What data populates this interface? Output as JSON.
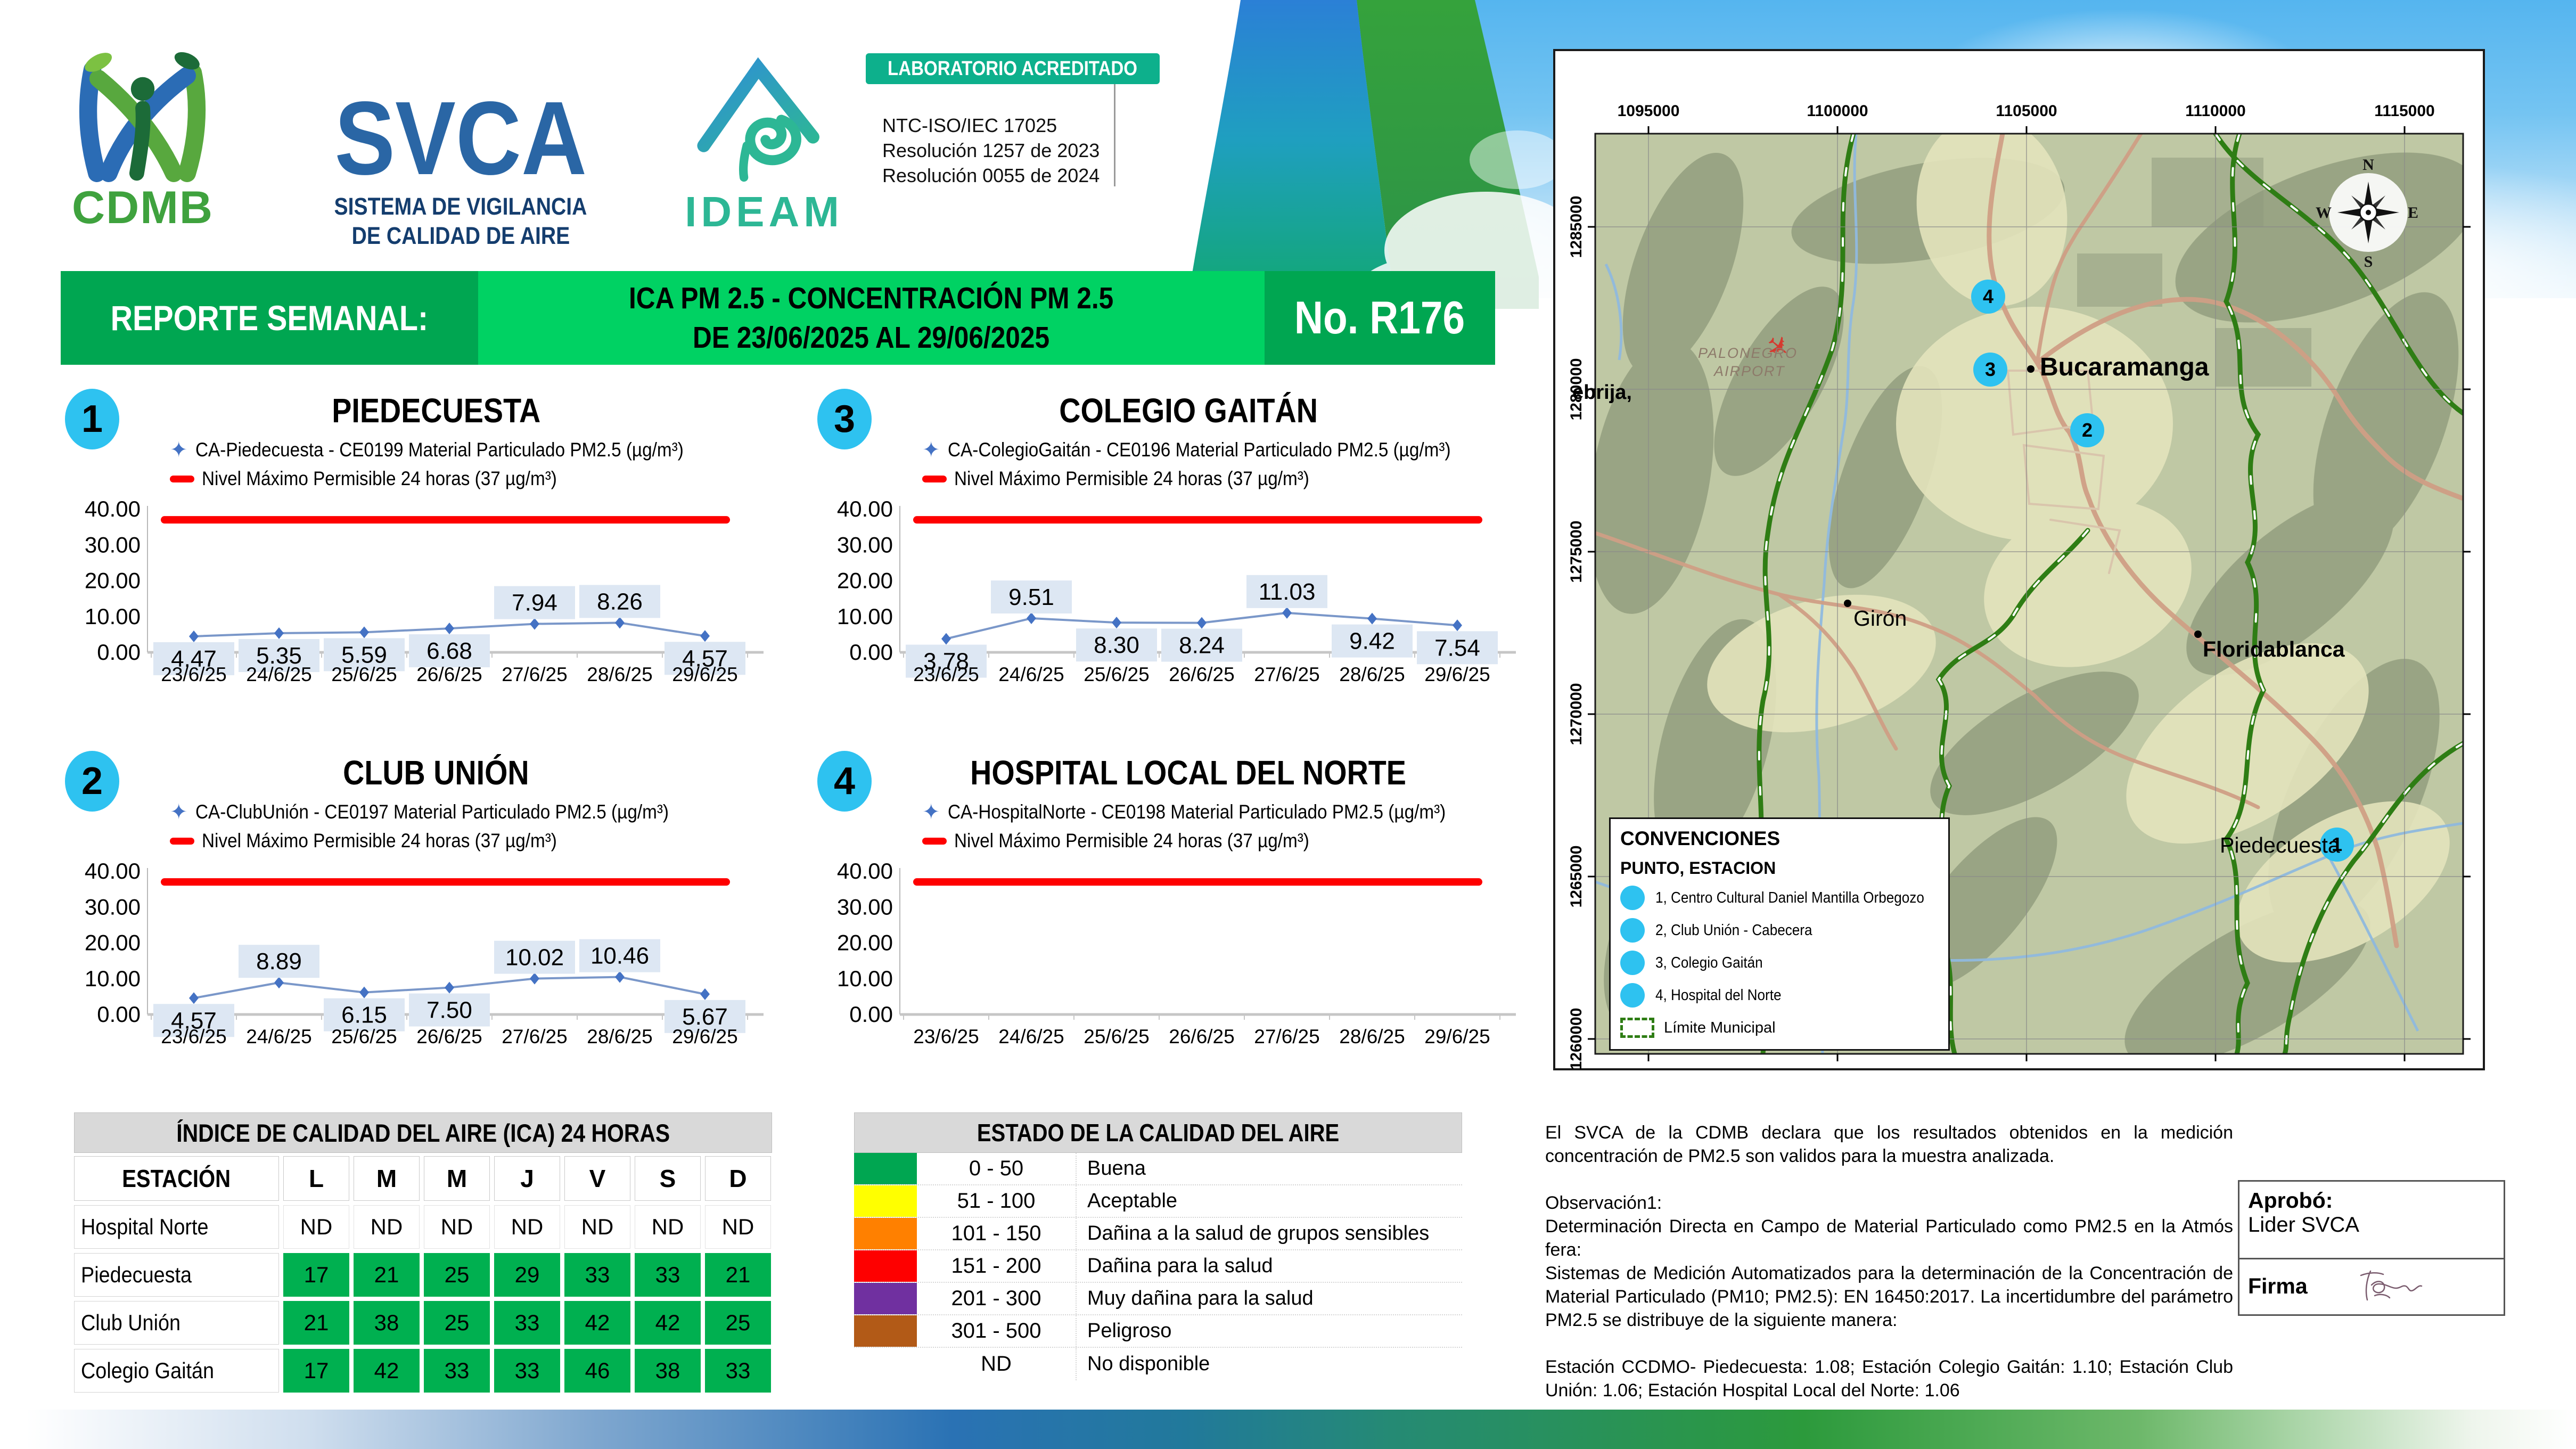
{
  "header": {
    "cdmb_label": "CDMB",
    "svca_title": "SVCA",
    "svca_subtitle1": "SISTEMA DE VIGILANCIA",
    "svca_subtitle2": "DE CALIDAD DE AIRE",
    "ideam_label": "IDEAM",
    "accreditation_badge": "LABORATORIO ACREDITADO",
    "accreditation_lines": [
      "NTC-ISO/IEC 17025",
      "Resolución 1257 de 2023",
      "Resolución 0055 de 2024"
    ]
  },
  "title_bar": {
    "label": "REPORTE SEMANAL:",
    "subject_line1": "ICA PM 2.5 - CONCENTRACIÓN PM 2.5",
    "subject_line2": "DE 23/06/2025 AL 29/06/2025",
    "report_no": "No. R176"
  },
  "chart_data": [
    {
      "type": "line",
      "number": "1",
      "title": "PIEDECUESTA",
      "series_label": "CA-Piedecuesta - CE0199 Material Particulado PM2.5 (µg/m³)",
      "limit_label": "Nivel Máximo Permisible 24 horas (37 µg/m³)",
      "x": [
        "23/6/25",
        "24/6/25",
        "25/6/25",
        "26/6/25",
        "27/6/25",
        "28/6/25",
        "29/6/25"
      ],
      "values": [
        4.47,
        5.35,
        5.59,
        6.68,
        7.94,
        8.26,
        4.57
      ],
      "label_above": [
        false,
        false,
        false,
        false,
        true,
        true,
        false
      ],
      "limit": 37,
      "ylim": [
        0,
        40
      ],
      "ytick_labels": [
        "40.00",
        "30.00",
        "20.00",
        "10.00",
        "0.00"
      ],
      "ylabel": "",
      "xlabel": "",
      "legend_position": "top",
      "grid": false
    },
    {
      "type": "line",
      "number": "3",
      "title": "COLEGIO GAITÁN",
      "series_label": "CA-ColegioGaitán - CE0196 Material Particulado PM2.5 (µg/m³)",
      "limit_label": "Nivel Máximo Permisible 24 horas (37 µg/m³)",
      "x": [
        "23/6/25",
        "24/6/25",
        "25/6/25",
        "26/6/25",
        "27/6/25",
        "28/6/25",
        "29/6/25"
      ],
      "values": [
        3.78,
        9.51,
        8.3,
        8.24,
        11.03,
        9.42,
        7.54
      ],
      "label_above": [
        false,
        true,
        false,
        false,
        true,
        false,
        false
      ],
      "limit": 37,
      "ylim": [
        0,
        40
      ],
      "ytick_labels": [
        "40.00",
        "30.00",
        "20.00",
        "10.00",
        "0.00"
      ],
      "ylabel": "",
      "xlabel": "",
      "legend_position": "top",
      "grid": false
    },
    {
      "type": "line",
      "number": "2",
      "title": "CLUB UNIÓN",
      "series_label": "CA-ClubUnión - CE0197 Material Particulado PM2.5 (µg/m³)",
      "limit_label": "Nivel Máximo Permisible 24 horas (37 µg/m³)",
      "x": [
        "23/6/25",
        "24/6/25",
        "25/6/25",
        "26/6/25",
        "27/6/25",
        "28/6/25",
        "29/6/25"
      ],
      "values": [
        4.57,
        8.89,
        6.15,
        7.5,
        10.02,
        10.46,
        5.67
      ],
      "label_above": [
        false,
        true,
        false,
        false,
        true,
        true,
        false
      ],
      "limit": 37,
      "ylim": [
        0,
        40
      ],
      "ytick_labels": [
        "40.00",
        "30.00",
        "20.00",
        "10.00",
        "0.00"
      ],
      "ylabel": "",
      "xlabel": "",
      "legend_position": "top",
      "grid": false
    },
    {
      "type": "line",
      "number": "4",
      "title": "HOSPITAL LOCAL DEL NORTE",
      "series_label": "CA-HospitalNorte - CE0198 Material Particulado PM2.5 (µg/m³)",
      "limit_label": "Nivel Máximo Permisible 24 horas (37 µg/m³)",
      "x": [
        "23/6/25",
        "24/6/25",
        "25/6/25",
        "26/6/25",
        "27/6/25",
        "28/6/25",
        "29/6/25"
      ],
      "values": [],
      "label_above": [],
      "limit": 37,
      "ylim": [
        0,
        40
      ],
      "ytick_labels": [
        "40.00",
        "30.00",
        "20.00",
        "10.00",
        "0.00"
      ],
      "ylabel": "",
      "xlabel": "",
      "legend_position": "top",
      "grid": false
    }
  ],
  "map": {
    "x_axis_labels": [
      "1095000",
      "1100000",
      "1105000",
      "1110000",
      "1115000"
    ],
    "y_axis_labels": [
      "1285000",
      "1280000",
      "1275000",
      "1270000",
      "1265000",
      "1260000"
    ],
    "labels": {
      "city_bucaramanga": "Bucaramanga",
      "city_floridablanca": "Floridablanca",
      "city_giron": "Girón",
      "city_piedecuesta": "Piedecuesta",
      "partial_lebrija": "ebrija,",
      "airport_line1": "PALONEGRO",
      "airport_line2": "AIRPORT"
    },
    "compass": {
      "n": "N",
      "e": "E",
      "s": "S",
      "w": "W"
    },
    "legend": {
      "title": "CONVENCIONES",
      "subtitle": "PUNTO, ESTACION",
      "stations": [
        {
          "num": "1",
          "name": "1, Centro Cultural Daniel Mantilla Orbegozo"
        },
        {
          "num": "2",
          "name": "2, Club Unión - Cabecera"
        },
        {
          "num": "3",
          "name": "3, Colegio Gaitán"
        },
        {
          "num": "4",
          "name": "4, Hospital del Norte"
        }
      ],
      "limit_label": "Límite Municipal"
    },
    "markers": [
      "1",
      "2",
      "3",
      "4"
    ]
  },
  "ica_table": {
    "title": "ÍNDICE DE CALIDAD DEL AIRE (ICA) 24 HORAS",
    "columns": [
      "ESTACIÓN",
      "L",
      "M",
      "M",
      "J",
      "V",
      "S",
      "D"
    ],
    "rows": [
      {
        "station": "Hospital Norte",
        "values": [
          "ND",
          "ND",
          "ND",
          "ND",
          "ND",
          "ND",
          "ND"
        ],
        "green": false
      },
      {
        "station": "Piedecuesta",
        "values": [
          "17",
          "21",
          "25",
          "29",
          "33",
          "33",
          "21"
        ],
        "green": true
      },
      {
        "station": "Club Unión",
        "values": [
          "21",
          "38",
          "25",
          "33",
          "42",
          "42",
          "25"
        ],
        "green": true
      },
      {
        "station": "Colegio Gaitán",
        "values": [
          "17",
          "42",
          "33",
          "33",
          "46",
          "38",
          "33"
        ],
        "green": true
      }
    ]
  },
  "estado_table": {
    "title": "ESTADO DE LA CALIDAD DEL AIRE",
    "rows": [
      {
        "range": "0 - 50",
        "label": "Buena",
        "color": "#00a651"
      },
      {
        "range": "51 - 100",
        "label": "Aceptable",
        "color": "#ffff00"
      },
      {
        "range": "101 - 150",
        "label": "Dañina a la salud de grupos sensibles",
        "color": "#ff8000"
      },
      {
        "range": "151 - 200",
        "label": "Dañina para la salud",
        "color": "#fe0000"
      },
      {
        "range": "201 - 300",
        "label": "Muy dañina para la salud",
        "color": "#7030a0"
      },
      {
        "range": "301 - 500",
        "label": "Peligroso",
        "color": "#b25a17"
      }
    ],
    "nd_row": {
      "range": "ND",
      "label": "No disponible"
    }
  },
  "notes": {
    "declaration": "El SVCA  de la CDMB declara que los resultados obtenidos en la medición concentración de PM2.5 son validos para la muestra  analizada.",
    "observation_title": "Observación1:",
    "observation_line1": "Determinación Directa en Campo de Material Particulado como PM2.5 en la Atmós fera:",
    "observation_line2": "Sistemas de Medición Automatizados para la  determinación de la Concentración de Material Particulado (PM10;  PM2.5): EN 16450:2017. La incertidumbre del parámetro PM2.5 se distribuye de la siguiente manera:",
    "uncertainty": "Estación CCDMO- Piedecuesta: 1.08; Estación Colegio Gaitán: 1.10; Estación Club Unión: 1.06; Estación Hospital Local del Norte: 1.06"
  },
  "approval": {
    "approved_label": "Aprobó:",
    "approved_by": "Lider SVCA",
    "signature_label": "Firma"
  },
  "colors": {
    "bar_dark_green": "#00a651",
    "bar_light_green": "#00d263",
    "badge_cyan": "#2ec2f0",
    "accreditation_teal": "#0db08c",
    "limit_red": "#fe0000",
    "series_blue": "#4472c4",
    "table_green": "#00b050",
    "value_box": "#dde7f3"
  }
}
